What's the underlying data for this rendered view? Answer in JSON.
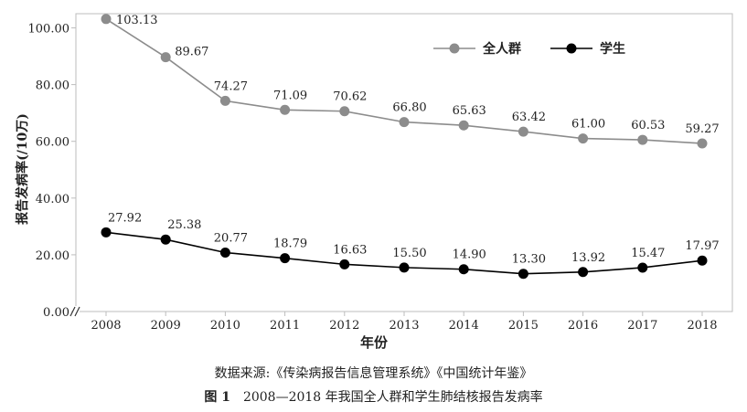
{
  "chart_data": {
    "type": "line",
    "categories": [
      "2008",
      "2009",
      "2010",
      "2011",
      "2012",
      "2013",
      "2014",
      "2015",
      "2016",
      "2017",
      "2018"
    ],
    "series": [
      {
        "name": "全人群",
        "color": "#8c8c8c",
        "values": [
          103.13,
          89.67,
          74.27,
          71.09,
          70.62,
          66.8,
          65.63,
          63.42,
          61.0,
          60.53,
          59.27
        ],
        "labels": [
          "103.13",
          "89.67",
          "74.27",
          "71.09",
          "70.62",
          "66.80",
          "65.63",
          "63.42",
          "61.00",
          "60.53",
          "59.27"
        ]
      },
      {
        "name": "学生",
        "color": "#000000",
        "values": [
          27.92,
          25.38,
          20.77,
          18.79,
          16.63,
          15.5,
          14.9,
          13.3,
          13.92,
          15.47,
          17.97
        ],
        "labels": [
          "27.92",
          "25.38",
          "20.77",
          "18.79",
          "16.63",
          "15.50",
          "14.90",
          "13.30",
          "13.92",
          "15.47",
          "17.97"
        ]
      }
    ],
    "yticks": [
      "0.00",
      "20.00",
      "40.00",
      "60.00",
      "80.00",
      "100.00"
    ],
    "ylim": [
      0,
      105
    ],
    "xlabel": "年份",
    "ylabel": "报告发病率(/10万)",
    "legend_position": "top-right",
    "grid": false
  },
  "captions": {
    "source": "数据来源:《传染病报告信息管理系统》《中国统计年鉴》",
    "figure_no": "图 1",
    "figure_title": "2008—2018 年我国全人群和学生肺结核报告发病率"
  }
}
